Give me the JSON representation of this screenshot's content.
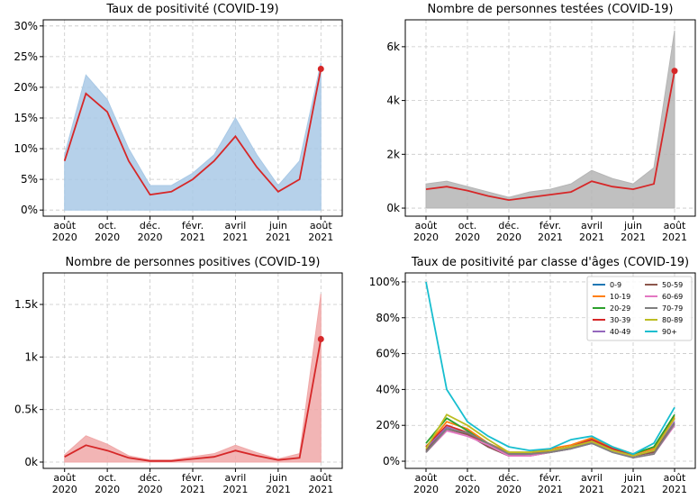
{
  "chart_data": [
    {
      "type": "line",
      "title": "Taux de positivité (COVID-19)",
      "x": [
        "2020-08",
        "2020-09",
        "2020-10",
        "2020-11",
        "2020-12",
        "2021-01",
        "2021-02",
        "2021-03",
        "2021-04",
        "2021-05",
        "2021-06",
        "2021-07",
        "2021-08"
      ],
      "xlim": [
        "2020-07",
        "2021-09"
      ],
      "xticks": [
        {
          "value": "2020-08",
          "label": "août\n2020"
        },
        {
          "value": "2020-10",
          "label": "oct.\n2020"
        },
        {
          "value": "2020-12",
          "label": "déc.\n2020"
        },
        {
          "value": "2021-02",
          "label": "févr.\n2021"
        },
        {
          "value": "2021-04",
          "label": "avril\n2021"
        },
        {
          "value": "2021-06",
          "label": "juin\n2021"
        },
        {
          "value": "2021-08",
          "label": "août\n2021"
        }
      ],
      "ylim": [
        -1,
        31
      ],
      "yticks": [
        {
          "value": 0,
          "label": "0%"
        },
        {
          "value": 5,
          "label": "5%"
        },
        {
          "value": 10,
          "label": "10%"
        },
        {
          "value": 15,
          "label": "15%"
        },
        {
          "value": 20,
          "label": "20%"
        },
        {
          "value": 25,
          "label": "25%"
        },
        {
          "value": 30,
          "label": "30%"
        }
      ],
      "grid": true,
      "series": [
        {
          "color": "#a9c9e6",
          "area": true,
          "values": [
            9,
            22,
            18,
            10,
            4,
            4,
            6,
            9,
            15,
            9,
            4,
            8,
            24
          ]
        },
        {
          "color": "#d62728",
          "end_marker": true,
          "values": [
            8,
            19,
            16,
            8,
            2.5,
            3,
            5,
            8,
            12,
            7,
            3,
            5,
            23
          ]
        }
      ]
    },
    {
      "type": "line",
      "title": "Nombre de personnes testées (COVID-19)",
      "x": [
        "2020-08",
        "2020-09",
        "2020-10",
        "2020-11",
        "2020-12",
        "2021-01",
        "2021-02",
        "2021-03",
        "2021-04",
        "2021-05",
        "2021-06",
        "2021-07",
        "2021-08"
      ],
      "xlim": [
        "2020-07",
        "2021-09"
      ],
      "xticks": [
        {
          "value": "2020-08",
          "label": "août\n2020"
        },
        {
          "value": "2020-10",
          "label": "oct.\n2020"
        },
        {
          "value": "2020-12",
          "label": "déc.\n2020"
        },
        {
          "value": "2021-02",
          "label": "févr.\n2021"
        },
        {
          "value": "2021-04",
          "label": "avril\n2021"
        },
        {
          "value": "2021-06",
          "label": "juin\n2021"
        },
        {
          "value": "2021-08",
          "label": "août\n2021"
        }
      ],
      "ylim": [
        -300,
        7000
      ],
      "yticks": [
        {
          "value": 0,
          "label": "0k"
        },
        {
          "value": 2000,
          "label": "2k"
        },
        {
          "value": 4000,
          "label": "4k"
        },
        {
          "value": 6000,
          "label": "6k"
        }
      ],
      "grid": true,
      "series": [
        {
          "color": "#b5b5b5",
          "area": true,
          "values": [
            900,
            1000,
            800,
            600,
            400,
            600,
            700,
            900,
            1400,
            1100,
            900,
            1500,
            6600
          ]
        },
        {
          "color": "#d62728",
          "end_marker": true,
          "values": [
            700,
            800,
            650,
            450,
            300,
            400,
            500,
            600,
            1000,
            800,
            700,
            900,
            5100
          ]
        }
      ]
    },
    {
      "type": "line",
      "title": "Nombre de personnes positives (COVID-19)",
      "x": [
        "2020-08",
        "2020-09",
        "2020-10",
        "2020-11",
        "2020-12",
        "2021-01",
        "2021-02",
        "2021-03",
        "2021-04",
        "2021-05",
        "2021-06",
        "2021-07",
        "2021-08"
      ],
      "xlim": [
        "2020-07",
        "2021-09"
      ],
      "xticks": [
        {
          "value": "2020-08",
          "label": "août\n2020"
        },
        {
          "value": "2020-10",
          "label": "oct.\n2020"
        },
        {
          "value": "2020-12",
          "label": "déc.\n2020"
        },
        {
          "value": "2021-02",
          "label": "févr.\n2021"
        },
        {
          "value": "2021-04",
          "label": "avril\n2021"
        },
        {
          "value": "2021-06",
          "label": "juin\n2021"
        },
        {
          "value": "2021-08",
          "label": "août\n2021"
        }
      ],
      "ylim": [
        -60,
        1800
      ],
      "yticks": [
        {
          "value": 0,
          "label": "0k"
        },
        {
          "value": 500,
          "label": "0.5k"
        },
        {
          "value": 1000,
          "label": "1k"
        },
        {
          "value": 1500,
          "label": "1.5k"
        }
      ],
      "grid": true,
      "series": [
        {
          "color": "#f0a8a8",
          "area": true,
          "values": [
            70,
            250,
            170,
            60,
            20,
            20,
            50,
            80,
            160,
            90,
            30,
            80,
            1600
          ]
        },
        {
          "color": "#d62728",
          "end_marker": true,
          "values": [
            50,
            160,
            110,
            40,
            10,
            10,
            30,
            50,
            110,
            60,
            20,
            40,
            1170
          ]
        }
      ]
    },
    {
      "type": "line",
      "title": "Taux de positivité par classe d'âges (COVID-19)",
      "x": [
        "2020-08",
        "2020-09",
        "2020-10",
        "2020-11",
        "2020-12",
        "2021-01",
        "2021-02",
        "2021-03",
        "2021-04",
        "2021-05",
        "2021-06",
        "2021-07",
        "2021-08"
      ],
      "xlim": [
        "2020-07",
        "2021-09"
      ],
      "xticks": [
        {
          "value": "2020-08",
          "label": "août\n2020"
        },
        {
          "value": "2020-10",
          "label": "oct.\n2020"
        },
        {
          "value": "2020-12",
          "label": "déc.\n2020"
        },
        {
          "value": "2021-02",
          "label": "févr.\n2021"
        },
        {
          "value": "2021-04",
          "label": "avril\n2021"
        },
        {
          "value": "2021-06",
          "label": "juin\n2021"
        },
        {
          "value": "2021-08",
          "label": "août\n2021"
        }
      ],
      "ylim": [
        -4,
        105
      ],
      "yticks": [
        {
          "value": 0,
          "label": "0%"
        },
        {
          "value": 20,
          "label": "20%"
        },
        {
          "value": 40,
          "label": "40%"
        },
        {
          "value": 60,
          "label": "60%"
        },
        {
          "value": 80,
          "label": "80%"
        },
        {
          "value": 100,
          "label": "100%"
        }
      ],
      "grid": true,
      "legend": "upper right",
      "series": [
        {
          "name": "0-9",
          "color": "#1f77b4",
          "values": [
            6,
            18,
            15,
            8,
            4,
            4,
            5,
            7,
            10,
            6,
            3,
            5,
            20
          ]
        },
        {
          "name": "10-19",
          "color": "#ff7f0e",
          "values": [
            8,
            22,
            18,
            10,
            5,
            5,
            7,
            9,
            13,
            8,
            4,
            7,
            25
          ]
        },
        {
          "name": "20-29",
          "color": "#2ca02c",
          "values": [
            10,
            24,
            17,
            9,
            4,
            4,
            6,
            8,
            12,
            7,
            4,
            8,
            26
          ]
        },
        {
          "name": "30-39",
          "color": "#d62728",
          "values": [
            8,
            20,
            16,
            8,
            4,
            4,
            6,
            8,
            12,
            7,
            3,
            6,
            24
          ]
        },
        {
          "name": "40-49",
          "color": "#9467bd",
          "values": [
            7,
            19,
            15,
            8,
            3,
            4,
            5,
            8,
            11,
            6,
            3,
            5,
            22
          ]
        },
        {
          "name": "50-59",
          "color": "#8c564b",
          "values": [
            6,
            18,
            15,
            8,
            3,
            3,
            5,
            7,
            11,
            6,
            3,
            5,
            21
          ]
        },
        {
          "name": "60-69",
          "color": "#e377c2",
          "values": [
            5,
            17,
            14,
            9,
            3,
            3,
            5,
            7,
            10,
            6,
            2,
            4,
            20
          ]
        },
        {
          "name": "70-79",
          "color": "#7f7f7f",
          "values": [
            5,
            18,
            16,
            10,
            4,
            4,
            5,
            7,
            10,
            5,
            2,
            4,
            21
          ]
        },
        {
          "name": "80-89",
          "color": "#bcbd22",
          "values": [
            7,
            26,
            20,
            12,
            5,
            5,
            6,
            8,
            11,
            6,
            3,
            6,
            24
          ]
        },
        {
          "name": "90+",
          "color": "#17becf",
          "values": [
            100,
            40,
            22,
            14,
            8,
            6,
            7,
            12,
            14,
            8,
            4,
            10,
            30
          ]
        }
      ]
    }
  ]
}
